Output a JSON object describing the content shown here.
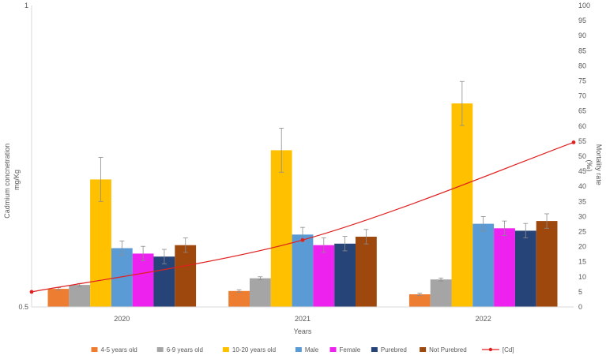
{
  "chart_data": {
    "type": "bar",
    "title": "",
    "xlabel": "Years",
    "ylabel_left": [
      "Cadmium concnetration",
      "mg/Kg"
    ],
    "ylabel_right": [
      "Mortality rate",
      "(‰)"
    ],
    "categories": [
      "2020",
      "2021",
      "2022"
    ],
    "left_axis": {
      "min": 0.5,
      "max": 1,
      "ticks": [
        "0.5",
        "1"
      ]
    },
    "right_axis": {
      "min": 0,
      "max": 100,
      "step": 5
    },
    "series": [
      {
        "name": "4-5 years old",
        "color": "#ED7D31",
        "values": [
          6,
          5.3,
          4.2
        ],
        "errors": [
          0.4,
          0.4,
          0.4
        ]
      },
      {
        "name": "6-9 years old",
        "color": "#A5A5A5",
        "values": [
          7.3,
          9.5,
          9.1
        ],
        "errors": [
          0.5,
          0.5,
          0.5
        ]
      },
      {
        "name": "10-20 years old",
        "color": "#FFC000",
        "values": [
          42.3,
          52,
          67.5
        ],
        "errors": [
          7.3,
          7.3,
          7.3
        ]
      },
      {
        "name": "Male",
        "color": "#5B9BD5",
        "values": [
          19.5,
          24,
          27.6
        ],
        "errors": [
          2.4,
          2.4,
          2.4
        ]
      },
      {
        "name": "Female",
        "color": "#EE22EE",
        "values": [
          17.7,
          20.5,
          26.1
        ],
        "errors": [
          2.4,
          2.4,
          2.4
        ]
      },
      {
        "name": "Purebred",
        "color": "#264478",
        "values": [
          16.7,
          21,
          25.3
        ],
        "errors": [
          2.4,
          2.4,
          2.4
        ]
      },
      {
        "name": "Not Purebred",
        "color": "#9E480E",
        "values": [
          20.5,
          23.3,
          28.5
        ],
        "errors": [
          2.4,
          2.4,
          2.4
        ]
      }
    ],
    "line": {
      "name": "[Cd]",
      "color": "#E02020",
      "values": [
        0.525,
        0.611,
        0.773
      ]
    },
    "grid": false,
    "legend_position": "bottom"
  }
}
